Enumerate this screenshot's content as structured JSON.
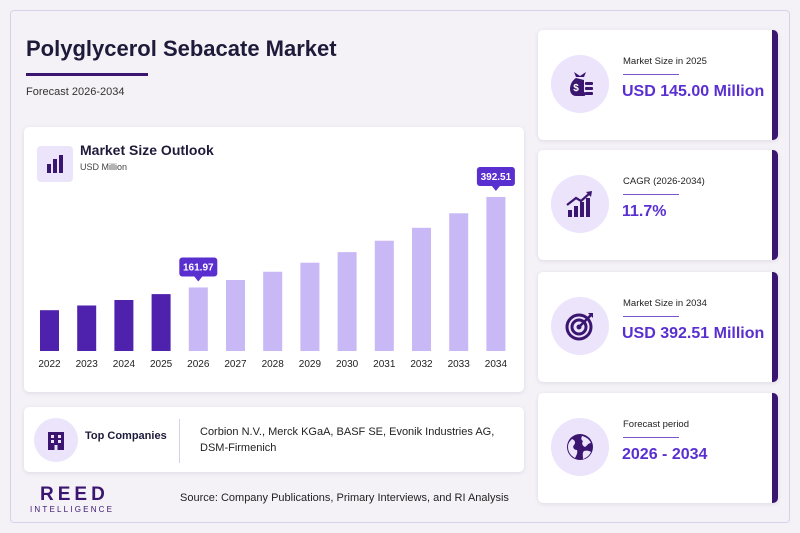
{
  "header": {
    "title": "Polyglycerol Sebacate Market",
    "subtitle": "Forecast 2026-2034"
  },
  "chart_data": {
    "type": "bar",
    "title": "Market Size Outlook",
    "ylabel": "USD Million",
    "categories": [
      "2022",
      "2023",
      "2024",
      "2025",
      "2026",
      "2027",
      "2028",
      "2029",
      "2030",
      "2031",
      "2032",
      "2033",
      "2034"
    ],
    "values": [
      104,
      116,
      130,
      145,
      161.97,
      181,
      202,
      225,
      252,
      281,
      314,
      351,
      392.51
    ],
    "data_labels": {
      "2026": "161.97",
      "2034": "392.51"
    },
    "historic_color": "#4f22ad",
    "forecast_color": "#c8b8f5",
    "label_color": "#5a2fd0"
  },
  "companies": {
    "label": "Top Companies",
    "list": "Corbion N.V., Merck KGaA, BASF SE, Evonik Industries AG, DSM-Firmenich"
  },
  "stats": [
    {
      "label": "Market Size in 2025",
      "value": "USD 145.00 Million",
      "icon": "money-bag-icon"
    },
    {
      "label": "CAGR (2026-2034)",
      "value": "11.7%",
      "icon": "growth-chart-icon"
    },
    {
      "label": "Market Size in 2034",
      "value": "USD 392.51 Million",
      "icon": "target-icon"
    },
    {
      "label": "Forecast period",
      "value": "2026 - 2034",
      "icon": "globe-icon"
    }
  ],
  "footer": {
    "logo_main": "REED",
    "logo_sub": "INTELLIGENCE",
    "source": "Source: Company Publications, Primary Interviews, and RI Analysis"
  }
}
